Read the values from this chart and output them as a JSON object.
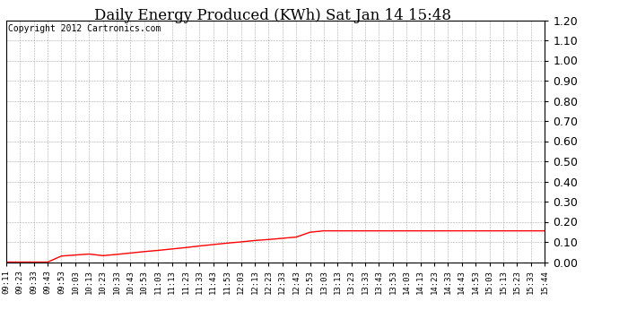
{
  "title": "Daily Energy Produced (KWh) Sat Jan 14 15:48",
  "copyright_text": "Copyright 2012 Cartronics.com",
  "line_color": "#FF0000",
  "background_color": "#FFFFFF",
  "plot_bg_color": "#FFFFFF",
  "ylim": [
    0.0,
    1.2
  ],
  "yticks": [
    0.0,
    0.1,
    0.2,
    0.3,
    0.4,
    0.5,
    0.6,
    0.7,
    0.8,
    0.9,
    1.0,
    1.1,
    1.2
  ],
  "x_labels": [
    "09:11",
    "09:23",
    "09:33",
    "09:43",
    "09:53",
    "10:03",
    "10:13",
    "10:23",
    "10:33",
    "10:43",
    "10:53",
    "11:03",
    "11:13",
    "11:23",
    "11:33",
    "11:43",
    "11:53",
    "12:03",
    "12:13",
    "12:23",
    "12:33",
    "12:43",
    "12:53",
    "13:03",
    "13:13",
    "13:23",
    "13:33",
    "13:43",
    "13:53",
    "14:03",
    "14:13",
    "14:23",
    "14:33",
    "14:43",
    "14:53",
    "15:03",
    "15:13",
    "15:23",
    "15:33",
    "15:44"
  ],
  "y_values": [
    0.0,
    0.0,
    0.0,
    0.0,
    0.03,
    0.035,
    0.04,
    0.032,
    0.038,
    0.045,
    0.052,
    0.058,
    0.065,
    0.072,
    0.08,
    0.087,
    0.094,
    0.1,
    0.107,
    0.112,
    0.118,
    0.124,
    0.148,
    0.155,
    0.155,
    0.155,
    0.155,
    0.155,
    0.155,
    0.155,
    0.155,
    0.155,
    0.155,
    0.155,
    0.155,
    0.155,
    0.155,
    0.155,
    0.155,
    0.155
  ],
  "grid_color": "#AAAAAA",
  "title_fontsize": 12,
  "ytick_fontsize": 9,
  "xtick_fontsize": 6.5,
  "copyright_fontsize": 7
}
